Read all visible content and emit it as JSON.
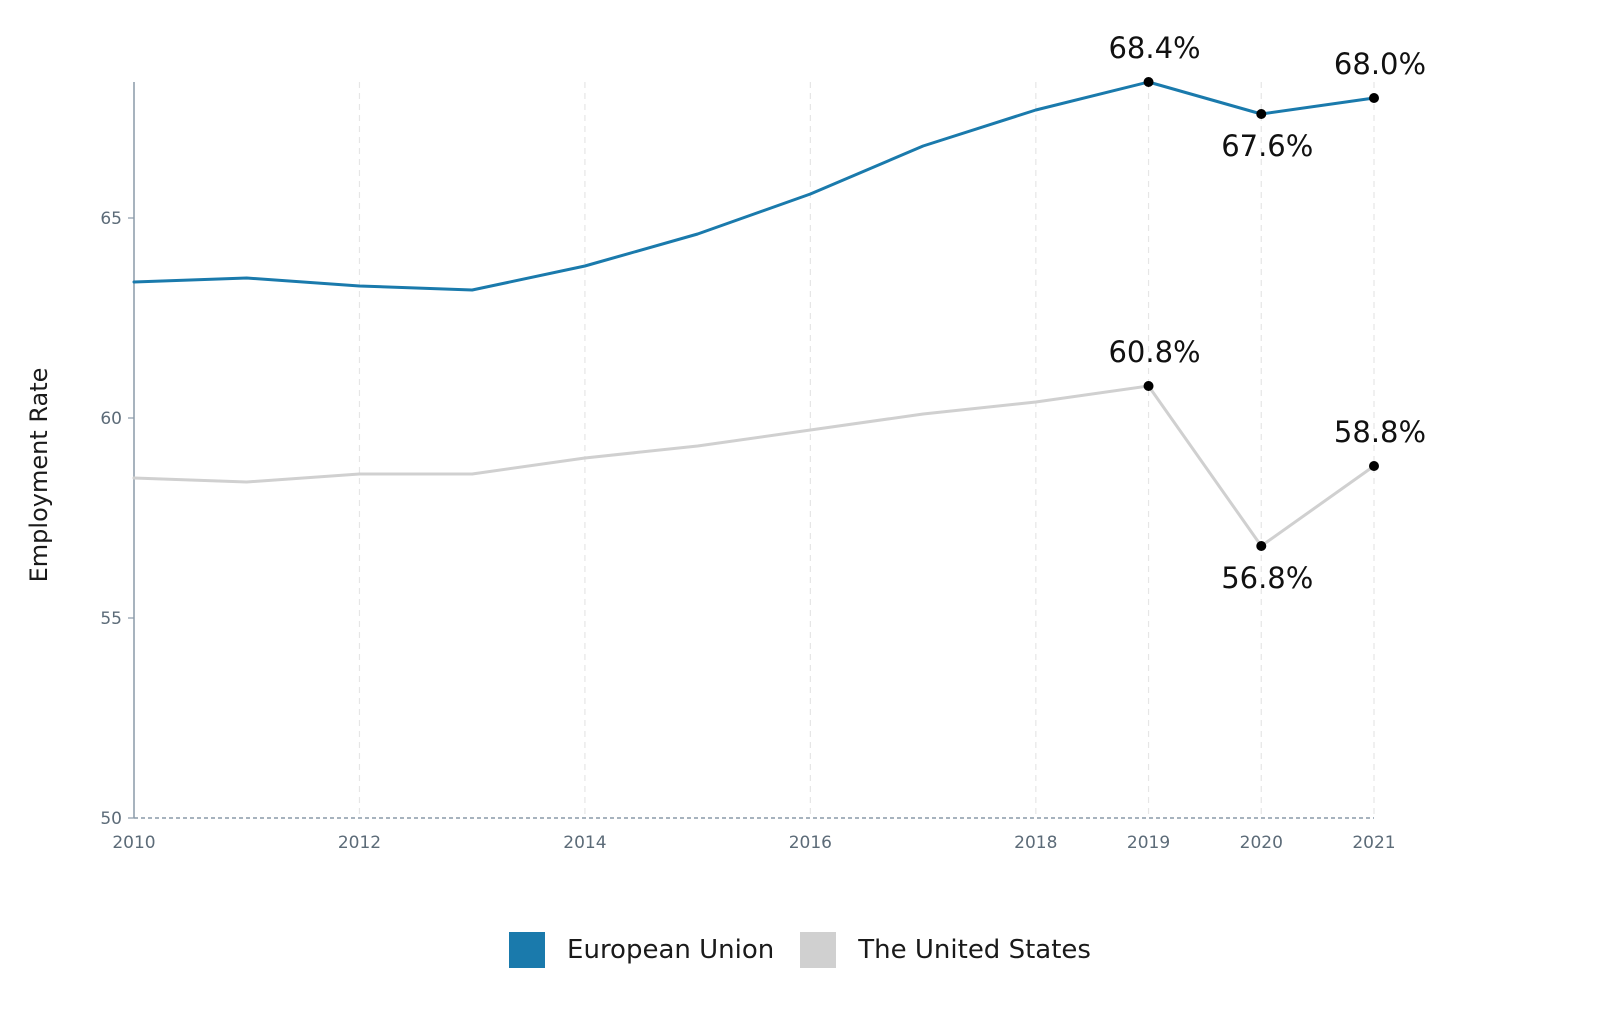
{
  "chart_data": {
    "type": "line",
    "title": "",
    "xlabel": "",
    "ylabel": "Employment Rate",
    "x": [
      2010,
      2011,
      2012,
      2013,
      2014,
      2015,
      2016,
      2017,
      2018,
      2019,
      2020,
      2021
    ],
    "xticks": [
      "2010",
      "2012",
      "2014",
      "2016",
      "2018",
      "2019",
      "2020",
      "2021"
    ],
    "yticks": [
      "50",
      "55",
      "60",
      "65"
    ],
    "xlim": [
      2010,
      2021
    ],
    "ylim": [
      50,
      68.4
    ],
    "grid": "vertical dashed",
    "legend_position": "bottom",
    "series": [
      {
        "name": "European Union",
        "color": "#1a7aac",
        "values": [
          63.4,
          63.5,
          63.3,
          63.2,
          63.8,
          64.6,
          65.6,
          66.8,
          67.7,
          68.4,
          67.6,
          68.0
        ]
      },
      {
        "name": "The United States",
        "color": "#d0d0d0",
        "values": [
          58.5,
          58.4,
          58.6,
          58.6,
          59.0,
          59.3,
          59.7,
          60.1,
          60.4,
          60.8,
          56.8,
          58.8
        ]
      }
    ],
    "annotations": [
      {
        "series": 0,
        "x": 2019,
        "label": "68.4%",
        "placement": "above"
      },
      {
        "series": 0,
        "x": 2020,
        "label": "67.6%",
        "placement": "below"
      },
      {
        "series": 0,
        "x": 2021,
        "label": "68.0%",
        "placement": "above"
      },
      {
        "series": 1,
        "x": 2019,
        "label": "60.8%",
        "placement": "above"
      },
      {
        "series": 1,
        "x": 2020,
        "label": "56.8%",
        "placement": "below"
      },
      {
        "series": 1,
        "x": 2021,
        "label": "58.8%",
        "placement": "above"
      }
    ]
  }
}
